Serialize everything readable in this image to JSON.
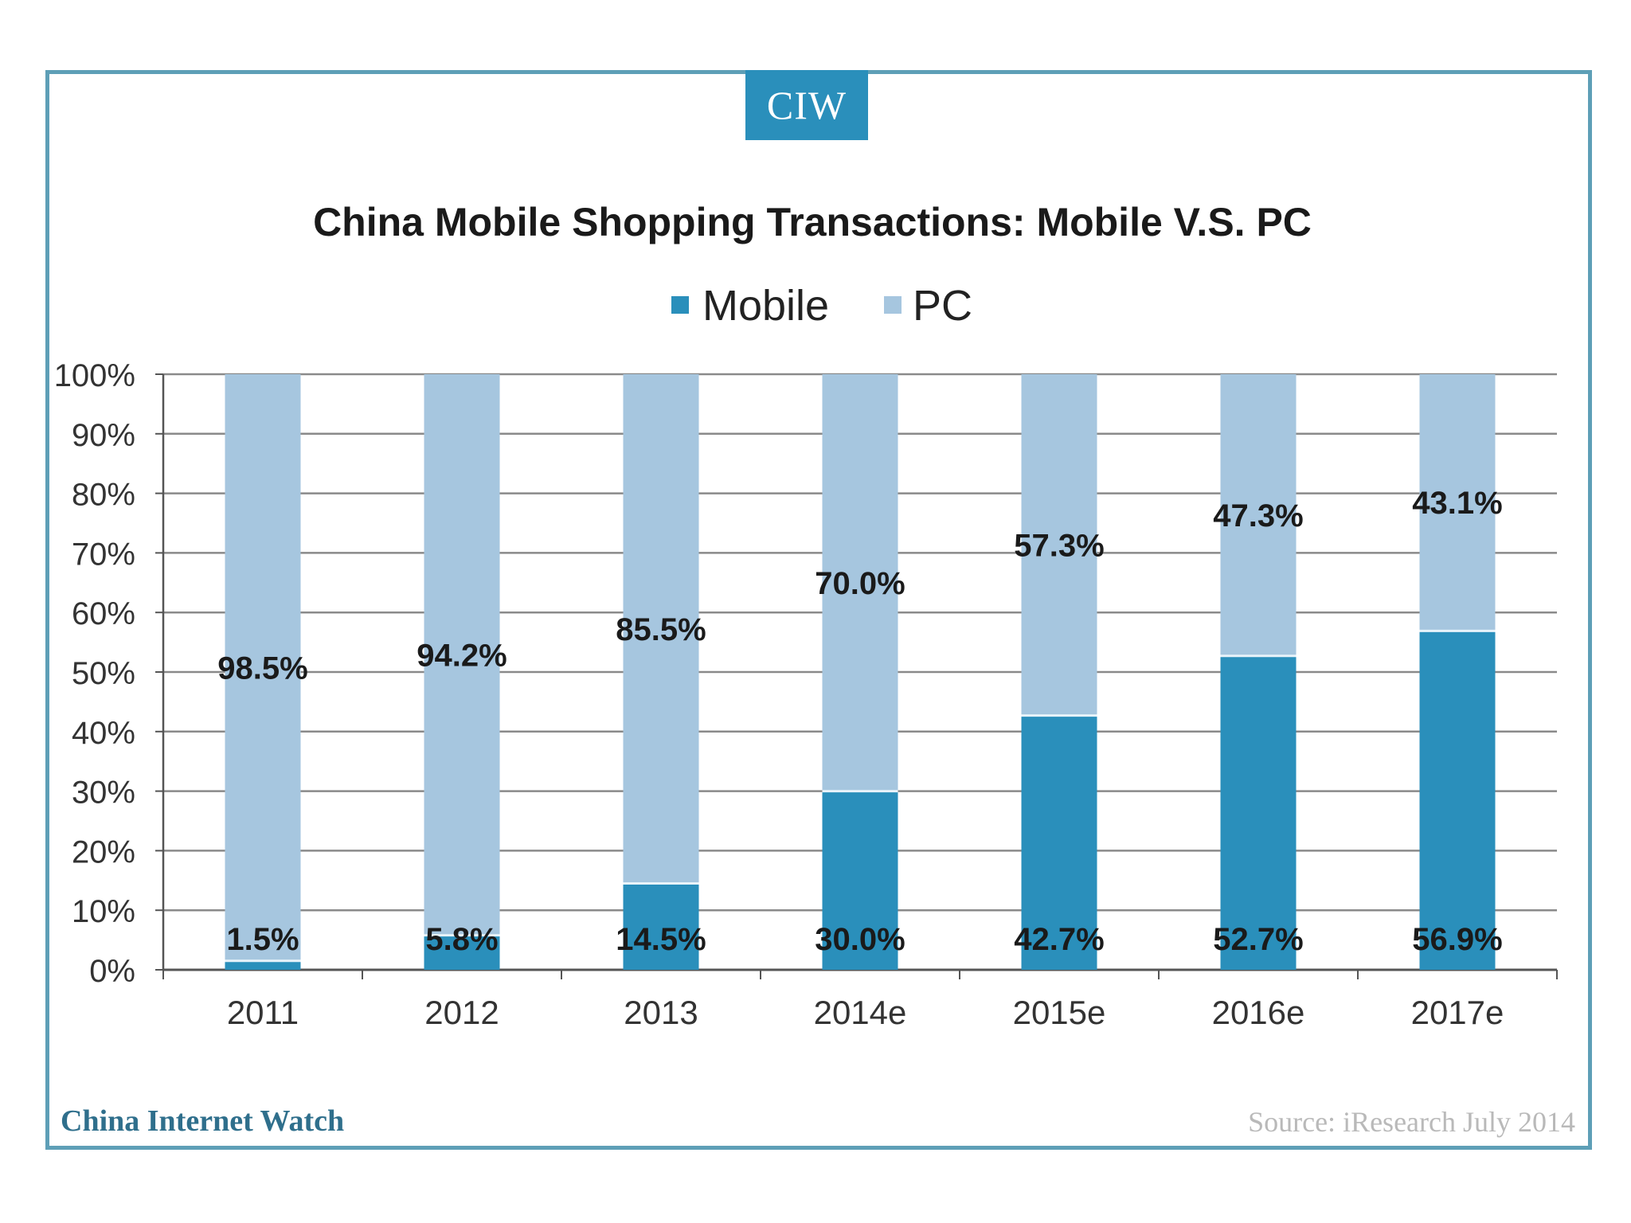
{
  "brand": {
    "badge": "CIW",
    "footer_left": "China Internet Watch",
    "footer_right": "Source: iResearch July 2014"
  },
  "colors": {
    "frame": "#5e9fb7",
    "badge": "#2a8fbb",
    "mobile": "#2a8fbb",
    "pc": "#a6c6df",
    "grid": "#8a8a8a",
    "text": "#1a1a1a"
  },
  "chart_data": {
    "type": "bar",
    "stacked": true,
    "title": "China Mobile Shopping Transactions: Mobile V.S. PC",
    "xlabel": "",
    "ylabel": "",
    "ylim": [
      0,
      100
    ],
    "yticks": [
      "0%",
      "10%",
      "20%",
      "30%",
      "40%",
      "50%",
      "60%",
      "70%",
      "80%",
      "90%",
      "100%"
    ],
    "categories": [
      "2011",
      "2012",
      "2013",
      "2014e",
      "2015e",
      "2016e",
      "2017e"
    ],
    "series": [
      {
        "name": "Mobile",
        "values": [
          1.5,
          5.8,
          14.5,
          30.0,
          42.7,
          52.7,
          56.9
        ],
        "labels": [
          "1.5%",
          "5.8%",
          "14.5%",
          "30.0%",
          "42.7%",
          "52.7%",
          "56.9%"
        ]
      },
      {
        "name": "PC",
        "values": [
          98.5,
          94.2,
          85.5,
          70.0,
          57.3,
          47.3,
          43.1
        ],
        "labels": [
          "98.5%",
          "94.2%",
          "85.5%",
          "70.0%",
          "57.3%",
          "47.3%",
          "43.1%"
        ]
      }
    ],
    "legend": "top-center"
  }
}
